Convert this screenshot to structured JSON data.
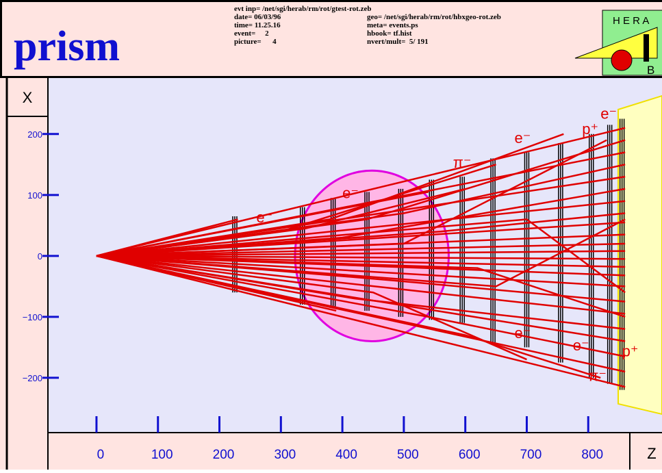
{
  "header": {
    "title": "prism",
    "info_left": [
      "evt inp= /net/sgi/herab/rm/rot/gtest-rot.zeb",
      "date= 06/03/96",
      "time= 11.25.16",
      "event=     2",
      "picture=      4"
    ],
    "info_right": [
      "geo= /net/sgi/herab/rm/rot/hbxgeo-rot.zeb",
      "meta= events.ps",
      "hbook= tf.hist",
      "nvert/mult=  5/ 191"
    ],
    "logo_top": "H E R A",
    "logo_bottom": "B"
  },
  "chart_data": {
    "type": "tracks",
    "xlabel": "Z",
    "ylabel": "X",
    "xlim": [
      -79,
      920
    ],
    "ylim": [
      -290,
      293
    ],
    "xticks": [
      0,
      100,
      200,
      300,
      400,
      500,
      600,
      700,
      800
    ],
    "yticks": [
      {
        "value": -200,
        "label": "−200"
      },
      {
        "value": -100,
        "label": "−100"
      },
      0,
      100,
      200
    ],
    "color": "#e00000",
    "magnet": {
      "x": 448,
      "y": 0,
      "rx": 125,
      "ry": 140
    },
    "planes": [
      {
        "x": 225,
        "y": [
          -60,
          65
        ]
      },
      {
        "x": 335,
        "y": [
          -80,
          80
        ]
      },
      {
        "x": 385,
        "y": [
          -85,
          95
        ]
      },
      {
        "x": 440,
        "y": [
          -90,
          105
        ]
      },
      {
        "x": 495,
        "y": [
          -100,
          110
        ]
      },
      {
        "x": 545,
        "y": [
          -105,
          125
        ]
      },
      {
        "x": 595,
        "y": [
          -110,
          130
        ]
      },
      {
        "x": 645,
        "y": [
          -145,
          160
        ]
      },
      {
        "x": 700,
        "y": [
          -150,
          170
        ]
      },
      {
        "x": 755,
        "y": [
          -175,
          185
        ]
      },
      {
        "x": 805,
        "y": [
          -200,
          200
        ]
      },
      {
        "x": 835,
        "y": [
          -210,
          215
        ]
      },
      {
        "x": 855,
        "y": [
          -220,
          225
        ]
      }
    ],
    "tracks": [
      {
        "x": [
          0,
          860
        ],
        "y": [
          0,
          210
        ]
      },
      {
        "x": [
          0,
          440,
          860
        ],
        "y": [
          0,
          60,
          190
        ]
      },
      {
        "x": [
          0,
          860
        ],
        "y": [
          0,
          170
        ]
      },
      {
        "x": [
          0,
          500,
          860
        ],
        "y": [
          0,
          70,
          150
        ]
      },
      {
        "x": [
          0,
          860
        ],
        "y": [
          0,
          130
        ]
      },
      {
        "x": [
          0,
          400,
          860
        ],
        "y": [
          0,
          30,
          110
        ]
      },
      {
        "x": [
          0,
          860
        ],
        "y": [
          0,
          90
        ]
      },
      {
        "x": [
          0,
          560,
          860
        ],
        "y": [
          0,
          40,
          70
        ]
      },
      {
        "x": [
          0,
          860
        ],
        "y": [
          0,
          55
        ]
      },
      {
        "x": [
          0,
          860
        ],
        "y": [
          0,
          35
        ]
      },
      {
        "x": [
          0,
          860
        ],
        "y": [
          0,
          20
        ]
      },
      {
        "x": [
          0,
          860
        ],
        "y": [
          0,
          8
        ]
      },
      {
        "x": [
          0,
          860
        ],
        "y": [
          0,
          -5
        ]
      },
      {
        "x": [
          0,
          860
        ],
        "y": [
          0,
          -18
        ]
      },
      {
        "x": [
          0,
          860
        ],
        "y": [
          0,
          -32
        ]
      },
      {
        "x": [
          0,
          860
        ],
        "y": [
          0,
          -50
        ]
      },
      {
        "x": [
          0,
          480,
          860
        ],
        "y": [
          0,
          -40,
          -75
        ]
      },
      {
        "x": [
          0,
          860
        ],
        "y": [
          0,
          -95
        ]
      },
      {
        "x": [
          0,
          420,
          860
        ],
        "y": [
          0,
          -70,
          -120
        ]
      },
      {
        "x": [
          0,
          860
        ],
        "y": [
          0,
          -140
        ]
      },
      {
        "x": [
          0,
          540,
          860
        ],
        "y": [
          0,
          -100,
          -165
        ]
      },
      {
        "x": [
          0,
          860
        ],
        "y": [
          0,
          -190
        ]
      },
      {
        "x": [
          0,
          860
        ],
        "y": [
          0,
          -215
        ]
      },
      {
        "x": [
          0,
          600,
          820
        ],
        "y": [
          0,
          -130,
          -200
        ]
      },
      {
        "x": [
          0,
          300,
          650
        ],
        "y": [
          0,
          40,
          150
        ]
      },
      {
        "x": [
          0,
          380,
          760
        ],
        "y": [
          0,
          60,
          200
        ]
      },
      {
        "x": [
          0,
          450,
          700
        ],
        "y": [
          0,
          -60,
          -170
        ]
      },
      {
        "x": [
          0,
          390
        ],
        "y": [
          0,
          -90
        ]
      },
      {
        "x": [
          0,
          540
        ],
        "y": [
          0,
          105
        ]
      },
      {
        "x": [
          0,
          340,
          600
        ],
        "y": [
          0,
          45,
          110
        ]
      },
      {
        "x": [
          0,
          500,
          830
        ],
        "y": [
          0,
          20,
          190
        ]
      },
      {
        "x": [
          0,
          620,
          860
        ],
        "y": [
          0,
          -20,
          -100
        ]
      },
      {
        "x": [
          0,
          700,
          860
        ],
        "y": [
          0,
          60,
          -60
        ]
      },
      {
        "x": [
          0,
          650,
          860
        ],
        "y": [
          0,
          -50,
          60
        ]
      },
      {
        "x": [
          0,
          230
        ],
        "y": [
          0,
          60
        ]
      },
      {
        "x": [
          0,
          330
        ],
        "y": [
          0,
          -75
        ]
      }
    ],
    "particles": [
      {
        "x": 820,
        "y": 225,
        "label": "e⁻"
      },
      {
        "x": 680,
        "y": 185,
        "label": "e⁻"
      },
      {
        "x": 580,
        "y": 145,
        "label": "π⁻"
      },
      {
        "x": 400,
        "y": 95,
        "label": "e⁻"
      },
      {
        "x": 260,
        "y": 55,
        "label": "e⁻"
      },
      {
        "x": 680,
        "y": -135,
        "label": "e⁻"
      },
      {
        "x": 775,
        "y": -155,
        "label": "e⁻"
      },
      {
        "x": 800,
        "y": -205,
        "label": "π⁻"
      },
      {
        "x": 855,
        "y": -165,
        "label": "p⁺"
      },
      {
        "x": 790,
        "y": 200,
        "label": "p⁺"
      }
    ]
  }
}
